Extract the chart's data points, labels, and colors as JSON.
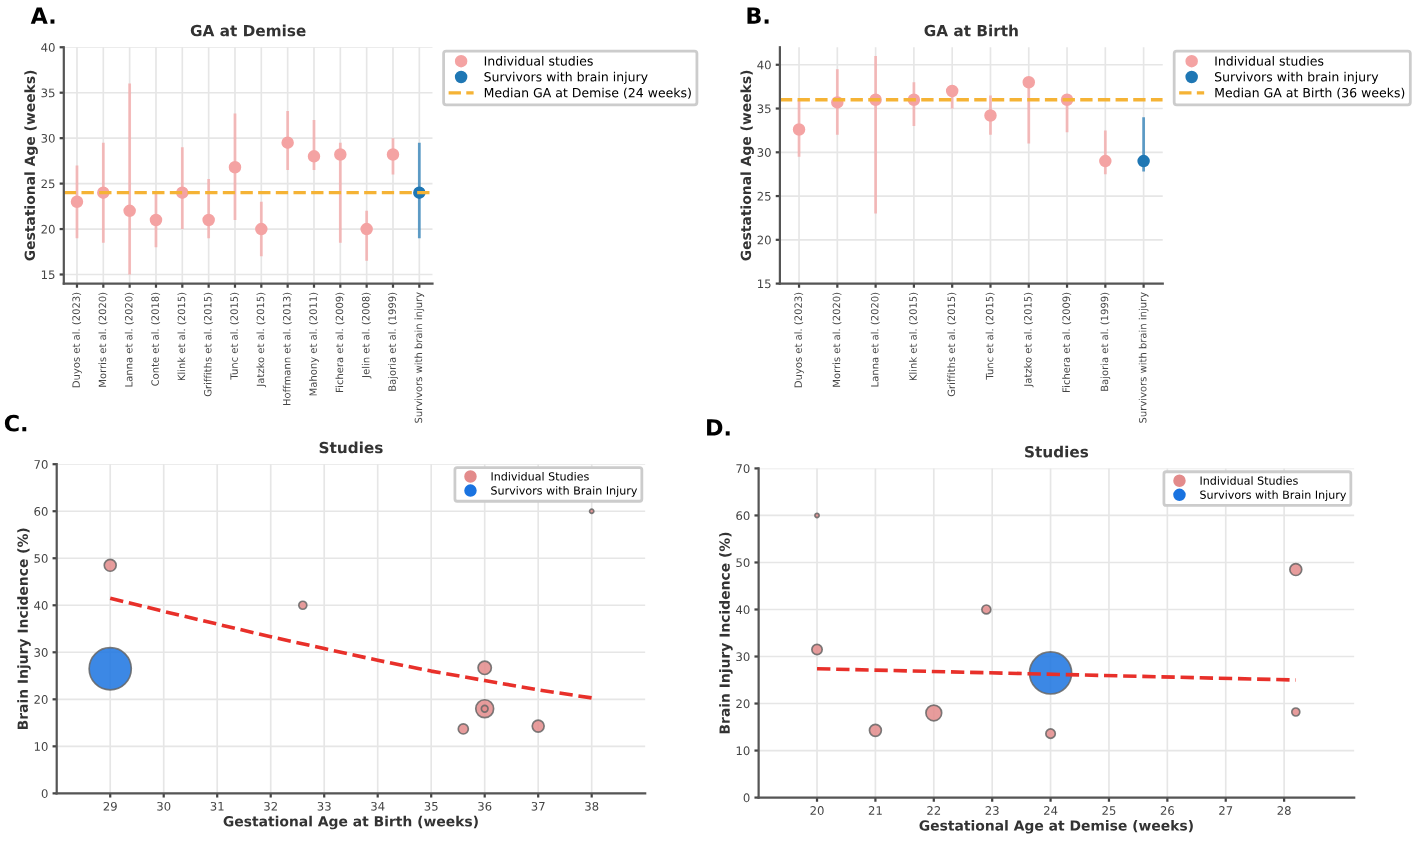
{
  "chart_data": [
    {
      "type": "scatter",
      "title": "GA at Demise",
      "ylabel": "Gestational Age (weeks)",
      "annotations": [
        "A."
      ],
      "categories": [
        "Duyos et al. (2023)",
        "Morris et al. (2020)",
        "Lanna et al. (2020)",
        "Conte et al. (2018)",
        "Klink et al. (2015)",
        "Griffiths et al. (2015)",
        "Tunc et al. (2015)",
        "Jatzko et al. (2015)",
        "Hoffmann et al. (2013)",
        "Mahony et al. (2011)",
        "Fichera et al. (2009)",
        "Jelin et al. (2008)",
        "Bajoria et al. (1999)",
        "Survivors with brain injury"
      ],
      "series": [
        {
          "name": "Individual studies",
          "color": "#f4a3a3",
          "values": [
            23,
            24,
            22,
            21,
            24,
            21,
            26.8,
            20,
            29.5,
            28,
            28.2,
            20,
            28.2,
            null
          ],
          "errors": [
            [
              19,
              27
            ],
            [
              18.5,
              29.5
            ],
            [
              15,
              36
            ],
            [
              18,
              24
            ],
            [
              20,
              29
            ],
            [
              19,
              25.5
            ],
            [
              21,
              32.7
            ],
            [
              17,
              23
            ],
            [
              26.5,
              33
            ],
            [
              26.5,
              32
            ],
            [
              18.5,
              29.5
            ],
            [
              16.5,
              22
            ],
            [
              26,
              30
            ],
            null
          ]
        },
        {
          "name": "Survivors with brain injury",
          "color": "#1f77b4",
          "values": [
            null,
            null,
            null,
            null,
            null,
            null,
            null,
            null,
            null,
            null,
            null,
            null,
            null,
            24
          ],
          "errors": [
            null,
            null,
            null,
            null,
            null,
            null,
            null,
            null,
            null,
            null,
            null,
            null,
            null,
            [
              19,
              29.5
            ]
          ]
        }
      ],
      "ref_lines": [
        {
          "axis": "y",
          "value": 24,
          "label": "Median GA at Demise (24 weeks)",
          "color": "#f5b335",
          "line_style": "dashed"
        }
      ],
      "ylim": [
        14,
        40
      ],
      "yticks": [
        15,
        20,
        25,
        30,
        35,
        40
      ],
      "grid": true,
      "legend": "right",
      "marker": "circle"
    },
    {
      "type": "scatter",
      "title": "GA at Birth",
      "ylabel": "Gestational Age (weeks)",
      "annotations": [
        "B."
      ],
      "categories": [
        "Duyos et al. (2023)",
        "Morris et al. (2020)",
        "Lanna et al. (2020)",
        "Klink et al. (2015)",
        "Griffiths et al. (2015)",
        "Tunc et al. (2015)",
        "Jatzko et al. (2015)",
        "Fichera et al. (2009)",
        "Bajoria et al. (1999)",
        "Survivors with brain injury"
      ],
      "series": [
        {
          "name": "Individual studies",
          "color": "#f4a3a3",
          "values": [
            32.6,
            35.7,
            36,
            36,
            37,
            34.2,
            38,
            36,
            29,
            null
          ],
          "errors": [
            [
              29.5,
              36
            ],
            [
              32,
              39.5
            ],
            [
              23,
              41
            ],
            [
              33,
              38
            ],
            [
              35,
              37
            ],
            [
              32,
              36.5
            ],
            [
              31,
              38
            ],
            [
              32.3,
              36
            ],
            [
              27.5,
              32.5
            ],
            null
          ]
        },
        {
          "name": "Survivors with brain injury",
          "color": "#1f77b4",
          "values": [
            null,
            null,
            null,
            null,
            null,
            null,
            null,
            null,
            null,
            29
          ],
          "errors": [
            null,
            null,
            null,
            null,
            null,
            null,
            null,
            null,
            null,
            [
              27.8,
              34
            ]
          ]
        }
      ],
      "ref_lines": [
        {
          "axis": "y",
          "value": 36,
          "label": "Median GA at Birth (36 weeks)",
          "color": "#f5b335",
          "line_style": "dashed"
        }
      ],
      "ylim": [
        15,
        42
      ],
      "yticks": [
        15,
        20,
        25,
        30,
        35,
        40
      ],
      "grid": true,
      "legend": "right",
      "marker": "circle"
    },
    {
      "type": "bubble",
      "title": "Studies",
      "xlabel": "Gestational Age at Birth (weeks)",
      "ylabel": "Brain Injury Incidence (%)",
      "annotations": [
        "C."
      ],
      "series": [
        {
          "name": "Individual Studies",
          "color": "#e38b8b",
          "x": [
            29,
            32.6,
            38,
            36,
            36,
            36,
            35.6,
            37
          ],
          "values": [
            48.5,
            40,
            60,
            26.7,
            18,
            18,
            13.7,
            14.3
          ],
          "sizes": [
            0.08,
            0.036,
            0.01,
            0.1,
            0.18,
            0.025,
            0.057,
            0.08
          ]
        },
        {
          "name": "Survivors with Brain Injury",
          "color": "#1a73e0",
          "x": [
            29
          ],
          "values": [
            26.5
          ],
          "sizes": [
            1
          ]
        },
        {
          "type": "line",
          "color": "#e8302a",
          "line_style": "dashed",
          "x": [
            29,
            30,
            31,
            32,
            33,
            34,
            35,
            36,
            37,
            38
          ],
          "values": [
            41.5,
            38.7,
            36,
            33.3,
            30.8,
            28.3,
            26,
            24,
            22,
            20.3
          ]
        }
      ],
      "xlim": [
        28,
        39
      ],
      "xticks": [
        29,
        30,
        31,
        32,
        33,
        34,
        35,
        36,
        37,
        38
      ],
      "ylim": [
        0,
        70
      ],
      "yticks": [
        0,
        10,
        20,
        30,
        40,
        50,
        60,
        70
      ],
      "grid": true,
      "legend": "top right"
    },
    {
      "type": "bubble",
      "title": "Studies",
      "xlabel": "Gestational Age at Demise (weeks)",
      "ylabel": "Brain Injury Incidence (%)",
      "annotations": [
        "D."
      ],
      "series": [
        {
          "name": "Individual Studies",
          "color": "#e38b8b",
          "x": [
            20,
            20,
            21,
            22,
            22.9,
            24,
            28.2,
            28.2
          ],
          "values": [
            60,
            31.5,
            14.3,
            18,
            40,
            13.6,
            48.5,
            18.2
          ],
          "sizes": [
            0.01,
            0.06,
            0.08,
            0.14,
            0.045,
            0.05,
            0.08,
            0.036
          ]
        },
        {
          "name": "Survivors with Brain Injury",
          "color": "#1a73e0",
          "x": [
            24
          ],
          "values": [
            26.5
          ],
          "sizes": [
            1
          ]
        },
        {
          "type": "line",
          "color": "#e8302a",
          "line_style": "dashed",
          "x": [
            20,
            28.2
          ],
          "values": [
            27.4,
            25
          ]
        }
      ],
      "xlim": [
        19,
        29.2
      ],
      "xticks": [
        20,
        21,
        22,
        23,
        24,
        25,
        26,
        27,
        28
      ],
      "ylim": [
        0,
        70
      ],
      "yticks": [
        0,
        10,
        20,
        30,
        40,
        50,
        60,
        70
      ],
      "grid": true,
      "legend": "top right"
    }
  ]
}
